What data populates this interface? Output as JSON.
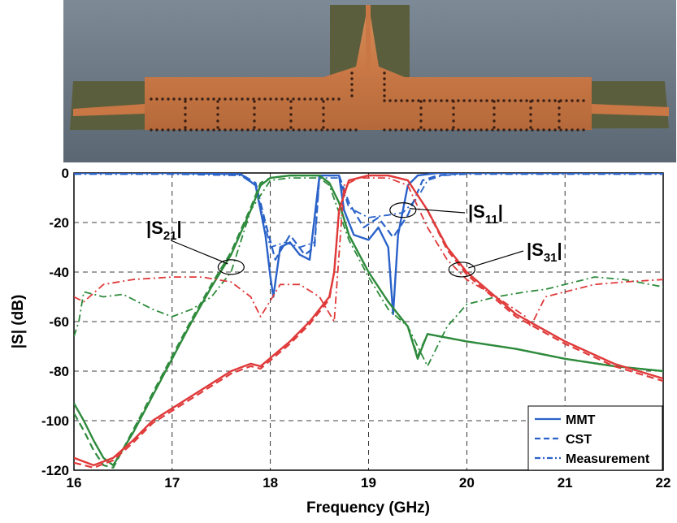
{
  "photo": {
    "caption_icon": "pcb-diplexer-photo",
    "colors": {
      "background": "#6d7a86",
      "copper": "#c97a45",
      "substrate": "#5a5d3e",
      "via": "#3b2016"
    }
  },
  "chart_data": {
    "type": "line",
    "xlabel": "Frequency (GHz)",
    "ylabel": "|S| (dB)",
    "xlim": [
      16,
      22
    ],
    "ylim": [
      -120,
      0
    ],
    "xticks": [
      "16",
      "17",
      "18",
      "19",
      "20",
      "21",
      "22"
    ],
    "yticks": [
      "0",
      "-20",
      "-40",
      "-60",
      "-80",
      "-100",
      "-120"
    ],
    "grid": true,
    "legend": {
      "placement": "bottom-right",
      "entries": [
        "MMT",
        "CST",
        "Measurement"
      ]
    },
    "annotations": [
      {
        "label_main": "|S",
        "label_sub": "21",
        "label_end": "|",
        "at": [
          17.6,
          -38
        ]
      },
      {
        "label_main": "|S",
        "label_sub": "11",
        "label_end": "|",
        "at": [
          19.35,
          -15
        ]
      },
      {
        "label_main": "|S",
        "label_sub": "31",
        "label_end": "|",
        "at": [
          19.95,
          -39
        ]
      }
    ],
    "colors": {
      "S11": "#2a62c9",
      "S21": "#2e8b3c",
      "S31": "#e03a3a"
    },
    "series": [
      {
        "param": "S11",
        "style": "MMT",
        "x": [
          16,
          17,
          17.7,
          17.85,
          17.95,
          18.0,
          18.03,
          18.1,
          18.2,
          18.3,
          18.4,
          18.5,
          18.7,
          18.75,
          18.85,
          19.0,
          19.1,
          19.2,
          19.25,
          19.3,
          19.4,
          19.5,
          19.7,
          20,
          22
        ],
        "y": [
          0,
          0,
          -0.5,
          -5,
          -25,
          -42,
          -50,
          -30,
          -28,
          -33,
          -35,
          -1,
          -1,
          -15,
          -25,
          -27,
          -22,
          -30,
          -57,
          -25,
          -5,
          -1,
          0,
          0,
          0
        ]
      },
      {
        "param": "S11",
        "style": "CST",
        "x": [
          16,
          17,
          17.7,
          17.85,
          17.95,
          18.05,
          18.2,
          18.35,
          18.45,
          18.5,
          18.7,
          18.8,
          18.95,
          19.1,
          19.25,
          19.4,
          19.55,
          19.7,
          20,
          22
        ],
        "y": [
          0,
          0,
          -0.5,
          -4,
          -20,
          -35,
          -25,
          -33,
          -30,
          -1,
          -1,
          -12,
          -22,
          -18,
          -26,
          -17,
          -3,
          -1,
          0,
          0
        ]
      },
      {
        "param": "S11",
        "style": "Measurement",
        "x": [
          16,
          17,
          17.7,
          17.85,
          18.0,
          18.15,
          18.3,
          18.45,
          18.5,
          18.7,
          18.8,
          19.0,
          19.2,
          19.35,
          19.5,
          19.6,
          19.75,
          20,
          22
        ],
        "y": [
          -0.5,
          -0.5,
          -1,
          -5,
          -30,
          -28,
          -30,
          -28,
          -2,
          -2,
          -14,
          -18,
          -17,
          -16,
          -10,
          -3,
          -1,
          -0.5,
          -0.5
        ]
      },
      {
        "param": "S21",
        "style": "MMT",
        "x": [
          16,
          16.1,
          16.2,
          16.3,
          16.4,
          16.6,
          16.8,
          17.0,
          17.2,
          17.4,
          17.6,
          17.8,
          17.9,
          18.0,
          18.2,
          18.5,
          18.6,
          18.7,
          18.8,
          19.0,
          19.2,
          19.4,
          19.5,
          19.6,
          20,
          20.5,
          21,
          21.5,
          22
        ],
        "y": [
          -93,
          -100,
          -108,
          -115,
          -118,
          -105,
          -90,
          -75,
          -60,
          -46,
          -33,
          -15,
          -5,
          -2,
          -1,
          -1,
          -4,
          -12,
          -25,
          -40,
          -52,
          -62,
          -75,
          -65,
          -68,
          -71,
          -75,
          -78,
          -80
        ]
      },
      {
        "param": "S21",
        "style": "CST",
        "x": [
          16,
          16.1,
          16.2,
          16.3,
          16.4,
          16.6,
          16.8,
          17.0,
          17.2,
          17.4,
          17.6,
          17.8,
          17.9,
          18.0,
          18.2,
          18.5,
          18.6,
          18.7,
          18.8,
          19.0,
          19.2,
          19.4,
          19.5,
          19.6,
          20,
          20.5,
          21,
          21.5,
          22
        ],
        "y": [
          -97,
          -104,
          -112,
          -118,
          -119,
          -104,
          -89,
          -74,
          -59,
          -45,
          -32,
          -14,
          -4,
          -2,
          -1,
          -1,
          -4,
          -12,
          -25,
          -40,
          -52,
          -62,
          -74,
          -65,
          -68,
          -71,
          -75,
          -78,
          -80
        ]
      },
      {
        "param": "S21",
        "style": "Measurement",
        "x": [
          16,
          16.05,
          16.1,
          16.3,
          16.5,
          16.8,
          17.0,
          17.2,
          17.4,
          17.6,
          17.8,
          18.0,
          18.2,
          18.5,
          18.6,
          18.8,
          19.0,
          19.2,
          19.4,
          19.6,
          19.8,
          20,
          20.3,
          20.6,
          20.8,
          21.0,
          21.3,
          21.6,
          22
        ],
        "y": [
          -66,
          -60,
          -48,
          -50,
          -49,
          -55,
          -58,
          -55,
          -50,
          -40,
          -15,
          -3,
          -2,
          -2,
          -5,
          -27,
          -42,
          -55,
          -62,
          -78,
          -62,
          -53,
          -50,
          -48,
          -47,
          -45,
          -42,
          -43,
          -46
        ]
      },
      {
        "param": "S31",
        "style": "MMT",
        "x": [
          16,
          16.2,
          16.4,
          16.6,
          16.8,
          17.0,
          17.2,
          17.4,
          17.6,
          17.8,
          17.9,
          18.2,
          18.4,
          18.6,
          18.65,
          18.7,
          18.8,
          19.0,
          19.2,
          19.4,
          19.6,
          19.8,
          20.0,
          20.5,
          21.0,
          21.5,
          22
        ],
        "y": [
          -115,
          -118,
          -115,
          -108,
          -100,
          -95,
          -90,
          -85,
          -80,
          -77,
          -78,
          -68,
          -60,
          -50,
          -40,
          -15,
          -3,
          -1,
          -1,
          -3,
          -15,
          -30,
          -40,
          -57,
          -68,
          -77,
          -83
        ]
      },
      {
        "param": "S31",
        "style": "CST",
        "x": [
          16,
          16.2,
          16.4,
          16.6,
          16.8,
          17.0,
          17.2,
          17.4,
          17.6,
          17.8,
          17.9,
          18.2,
          18.4,
          18.6,
          18.65,
          18.7,
          18.8,
          19.0,
          19.2,
          19.4,
          19.6,
          19.8,
          20.0,
          20.5,
          21.0,
          21.5,
          22
        ],
        "y": [
          -117,
          -119,
          -116,
          -109,
          -101,
          -96,
          -91,
          -86,
          -81,
          -78,
          -79,
          -69,
          -61,
          -51,
          -40,
          -15,
          -3,
          -1,
          -1,
          -3,
          -15,
          -31,
          -41,
          -58,
          -69,
          -78,
          -84
        ]
      },
      {
        "param": "S31",
        "style": "Measurement",
        "x": [
          16,
          16.1,
          16.3,
          16.6,
          17.0,
          17.3,
          17.6,
          17.8,
          17.9,
          18.1,
          18.3,
          18.5,
          18.65,
          18.75,
          18.9,
          19.2,
          19.4,
          19.6,
          19.8,
          20.0,
          20.3,
          20.6,
          20.65,
          20.8,
          21.0,
          21.3,
          21.6,
          22
        ],
        "y": [
          -50,
          -52,
          -45,
          -43,
          -42,
          -42,
          -44,
          -50,
          -58,
          -45,
          -45,
          -50,
          -60,
          -5,
          -2,
          -2,
          -5,
          -22,
          -35,
          -43,
          -50,
          -58,
          -62,
          -50,
          -48,
          -45,
          -44,
          -43
        ]
      }
    ]
  }
}
